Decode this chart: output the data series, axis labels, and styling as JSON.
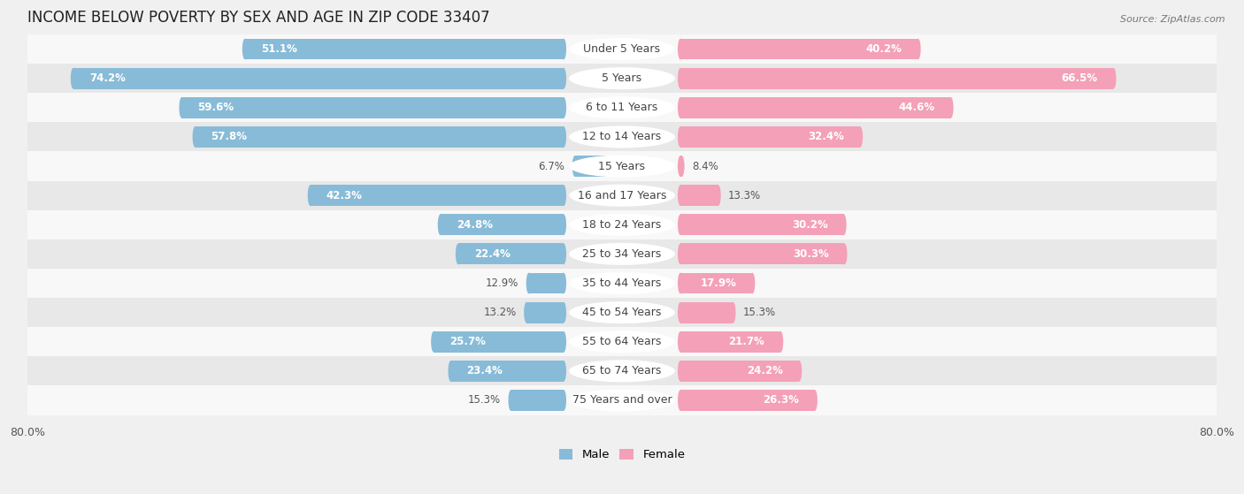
{
  "title": "INCOME BELOW POVERTY BY SEX AND AGE IN ZIP CODE 33407",
  "source": "Source: ZipAtlas.com",
  "categories": [
    "Under 5 Years",
    "5 Years",
    "6 to 11 Years",
    "12 to 14 Years",
    "15 Years",
    "16 and 17 Years",
    "18 to 24 Years",
    "25 to 34 Years",
    "35 to 44 Years",
    "45 to 54 Years",
    "55 to 64 Years",
    "65 to 74 Years",
    "75 Years and over"
  ],
  "male": [
    51.1,
    74.2,
    59.6,
    57.8,
    6.7,
    42.3,
    24.8,
    22.4,
    12.9,
    13.2,
    25.7,
    23.4,
    15.3
  ],
  "female": [
    40.2,
    66.5,
    44.6,
    32.4,
    8.4,
    13.3,
    30.2,
    30.3,
    17.9,
    15.3,
    21.7,
    24.2,
    26.3
  ],
  "male_color": "#88bbd8",
  "female_color": "#f4a0b8",
  "male_label": "Male",
  "female_label": "Female",
  "axis_max": 80.0,
  "bg_color": "#f0f0f0",
  "row_bg_even": "#f8f8f8",
  "row_bg_odd": "#e8e8e8",
  "title_fontsize": 12,
  "label_fontsize": 9,
  "value_fontsize": 8.5,
  "axis_label_fontsize": 9
}
